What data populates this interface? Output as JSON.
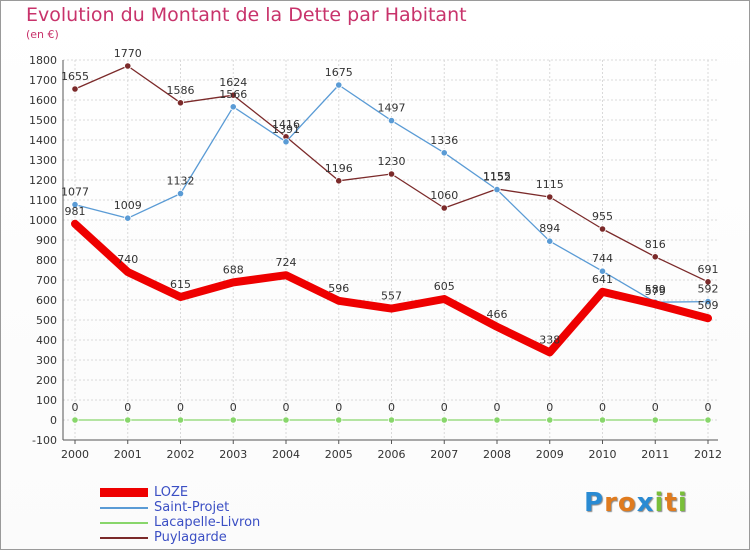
{
  "header": {
    "title": "Evolution du Montant de la Dette par Habitant",
    "unit": "(en €)"
  },
  "brand": {
    "logo_letters": [
      "P",
      "r",
      "o",
      "x",
      "i",
      "t",
      "i"
    ],
    "logo_colors": [
      "#2a8bd3",
      "#e07b1e",
      "#e07b1e",
      "#2a8bd3",
      "#7abf3a",
      "#e07b1e",
      "#7abf3a"
    ]
  },
  "chart_data": {
    "type": "line",
    "x": [
      "2000",
      "2001",
      "2002",
      "2003",
      "2004",
      "2005",
      "2006",
      "2007",
      "2008",
      "2009",
      "2010",
      "2011",
      "2012"
    ],
    "ylim": [
      -100,
      1800
    ],
    "yticks": [
      -100,
      0,
      100,
      200,
      300,
      400,
      500,
      600,
      700,
      800,
      900,
      1000,
      1100,
      1200,
      1300,
      1400,
      1500,
      1600,
      1700,
      1800
    ],
    "grid": true,
    "legend_position": "bottom-left",
    "series": [
      {
        "name": "LOZE",
        "color": "#ee0000",
        "values": [
          981,
          740,
          615,
          688,
          724,
          596,
          557,
          605,
          466,
          338,
          641,
          579,
          509
        ]
      },
      {
        "name": "Saint-Projet",
        "color": "#5a9bd5",
        "values": [
          1077,
          1009,
          1132,
          1566,
          1391,
          1675,
          1497,
          1336,
          1152,
          894,
          744,
          589,
          592
        ]
      },
      {
        "name": "Lacapelle-Livron",
        "color": "#88d66b",
        "values": [
          0,
          0,
          0,
          0,
          0,
          0,
          0,
          0,
          0,
          0,
          0,
          0,
          0
        ]
      },
      {
        "name": "Puylagarde",
        "color": "#7b2a2a",
        "values": [
          1655,
          1770,
          1586,
          1624,
          1416,
          1196,
          1230,
          1060,
          1155,
          1115,
          955,
          816,
          691
        ]
      }
    ]
  }
}
